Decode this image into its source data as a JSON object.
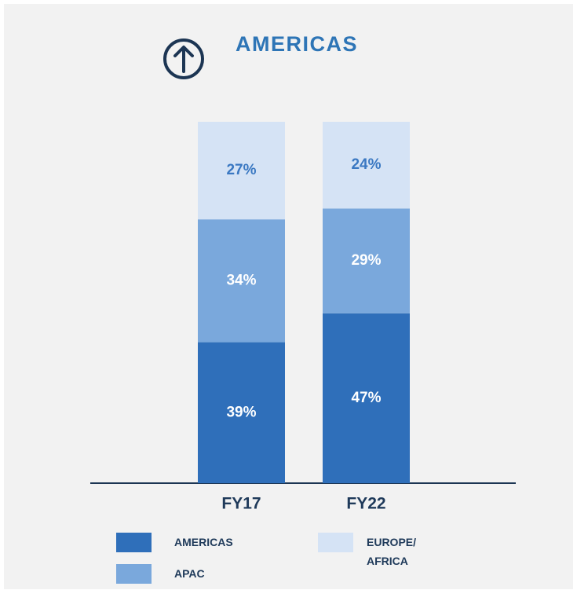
{
  "chart_data": {
    "type": "stacked_bar",
    "title": "AMERICAS",
    "categories": [
      "FY17",
      "FY22"
    ],
    "series": [
      {
        "name": "AMERICAS",
        "color": "#2f6fba",
        "label_color": "#ffffff",
        "values": [
          39,
          47
        ],
        "value_labels": [
          "39%",
          "47%"
        ]
      },
      {
        "name": "APAC",
        "color": "#7aa8dc",
        "label_color": "#ffffff",
        "values": [
          34,
          29
        ],
        "value_labels": [
          "34%",
          "29%"
        ]
      },
      {
        "name": "EUROPE/ AFRICA",
        "color": "#d5e3f5",
        "label_color": "#3a78c2",
        "values": [
          27,
          24
        ],
        "value_labels": [
          "27%",
          "24%"
        ]
      }
    ],
    "ylim": [
      0,
      100
    ]
  }
}
